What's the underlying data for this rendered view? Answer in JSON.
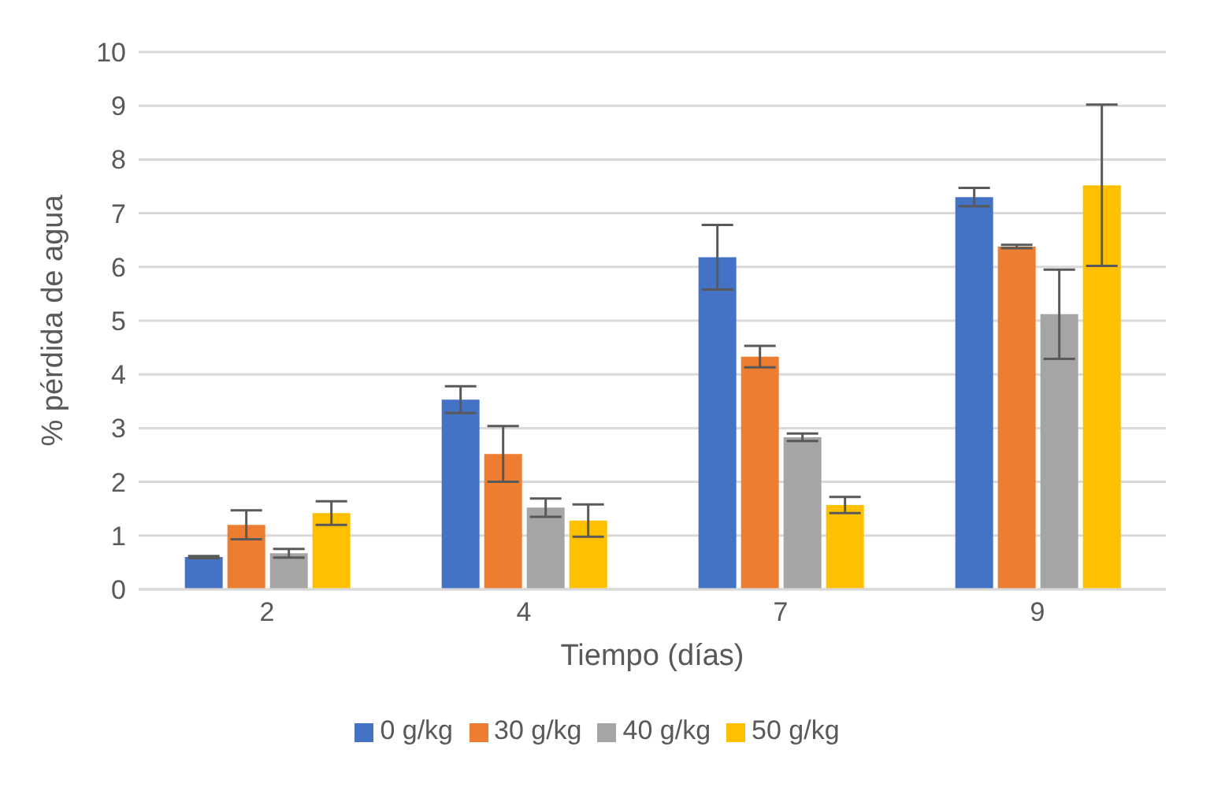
{
  "chart_data": {
    "type": "bar",
    "xlabel": "Tiempo (días)",
    "ylabel": "% pérdida de agua",
    "categories": [
      "2",
      "4",
      "7",
      "9"
    ],
    "series": [
      {
        "name": "0 g/kg",
        "color": "#4472c4",
        "values": [
          0.6,
          3.53,
          6.18,
          7.3
        ],
        "errors": [
          0.02,
          0.25,
          0.6,
          0.17
        ]
      },
      {
        "name": "30 g/kg",
        "color": "#ed7d31",
        "values": [
          1.2,
          2.52,
          4.33,
          6.38
        ],
        "errors": [
          0.27,
          0.52,
          0.2,
          0.03
        ]
      },
      {
        "name": "40 g/kg",
        "color": "#a5a5a5",
        "values": [
          0.67,
          1.52,
          2.83,
          5.12
        ],
        "errors": [
          0.08,
          0.17,
          0.07,
          0.83
        ]
      },
      {
        "name": "50 g/kg",
        "color": "#ffc000",
        "values": [
          1.42,
          1.28,
          1.57,
          7.52
        ],
        "errors": [
          0.22,
          0.3,
          0.15,
          1.5
        ]
      }
    ],
    "ylim": [
      0,
      10
    ],
    "yticks": [
      0,
      1,
      2,
      3,
      4,
      5,
      6,
      7,
      8,
      9,
      10
    ],
    "grid": "y",
    "legend": "bottom"
  }
}
